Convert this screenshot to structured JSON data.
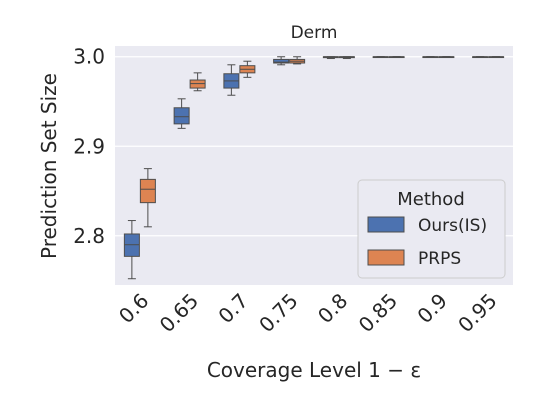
{
  "chart_data": {
    "type": "box",
    "title": "Derm",
    "xlabel": "Coverage Level 1 − ε",
    "ylabel": "Prediction Set Size",
    "categories": [
      "0.6",
      "0.65",
      "0.7",
      "0.75",
      "0.8",
      "0.85",
      "0.9",
      "0.95"
    ],
    "ylim": [
      2.745,
      3.012
    ],
    "yticks": [
      "2.8",
      "2.9",
      "3.0"
    ],
    "ytick_values": [
      2.8,
      2.9,
      3.0
    ],
    "legend": {
      "title": "Method",
      "placement": "lower-right"
    },
    "grid": true,
    "colors": {
      "Ours(IS)": "#4c72b0",
      "PRPS": "#dd8452",
      "plot_bg": "#eaeaf2",
      "grid": "#ffffff",
      "whisker": "#4d4d4d"
    },
    "series": [
      {
        "name": "Ours(IS)",
        "boxes": [
          {
            "min": 2.752,
            "q1": 2.777,
            "median": 2.79,
            "q3": 2.802,
            "max": 2.817
          },
          {
            "min": 2.92,
            "q1": 2.925,
            "median": 2.933,
            "q3": 2.943,
            "max": 2.953
          },
          {
            "min": 2.957,
            "q1": 2.965,
            "median": 2.973,
            "q3": 2.981,
            "max": 2.991
          },
          {
            "min": 2.991,
            "q1": 2.993,
            "median": 2.994,
            "q3": 2.997,
            "max": 3.0
          },
          {
            "min": 2.998,
            "q1": 2.999,
            "median": 3.0,
            "q3": 3.0,
            "max": 3.0
          },
          {
            "min": 3.0,
            "q1": 3.0,
            "median": 3.0,
            "q3": 3.0,
            "max": 3.0
          },
          {
            "min": 3.0,
            "q1": 3.0,
            "median": 3.0,
            "q3": 3.0,
            "max": 3.0
          },
          {
            "min": 3.0,
            "q1": 3.0,
            "median": 3.0,
            "q3": 3.0,
            "max": 3.0
          }
        ]
      },
      {
        "name": "PRPS",
        "boxes": [
          {
            "min": 2.81,
            "q1": 2.837,
            "median": 2.852,
            "q3": 2.863,
            "max": 2.875
          },
          {
            "min": 2.962,
            "q1": 2.965,
            "median": 2.97,
            "q3": 2.974,
            "max": 2.982
          },
          {
            "min": 2.977,
            "q1": 2.982,
            "median": 2.986,
            "q3": 2.99,
            "max": 2.995
          },
          {
            "min": 2.992,
            "q1": 2.993,
            "median": 2.995,
            "q3": 2.997,
            "max": 3.0
          },
          {
            "min": 2.998,
            "q1": 2.999,
            "median": 3.0,
            "q3": 3.0,
            "max": 3.0
          },
          {
            "min": 3.0,
            "q1": 3.0,
            "median": 3.0,
            "q3": 3.0,
            "max": 3.0
          },
          {
            "min": 3.0,
            "q1": 3.0,
            "median": 3.0,
            "q3": 3.0,
            "max": 3.0
          },
          {
            "min": 3.0,
            "q1": 3.0,
            "median": 3.0,
            "q3": 3.0,
            "max": 3.0
          }
        ]
      }
    ]
  }
}
